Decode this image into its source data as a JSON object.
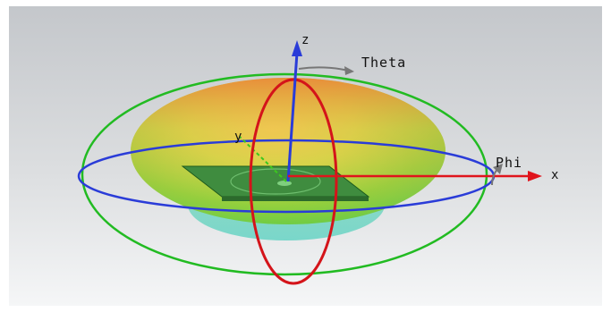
{
  "viewport": {
    "axis_labels": {
      "z": "z",
      "x": "x",
      "y": "y",
      "theta": "Theta",
      "phi": "Phi"
    },
    "colors": {
      "background_top": "#c8cbcf",
      "background_bottom": "#f4f5f6",
      "x_axis": "#e0141c",
      "y_axis": "#3cc81e",
      "z_axis": "#2a3cd8",
      "theta_circle": "#d4141a",
      "phi_circle": "#2a3cd8",
      "green_circle": "#22bb22",
      "pattern_top": "#e88a3a",
      "pattern_mid": "#8fd23a",
      "pattern_bottom": "#5fd6b0",
      "antenna": "#3c8a3c"
    }
  }
}
